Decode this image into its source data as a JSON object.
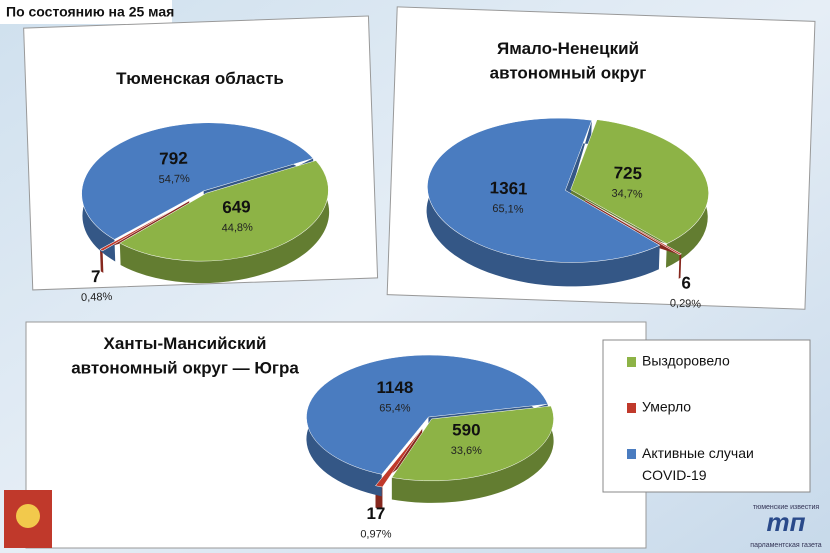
{
  "header": "По состоянию на 25 мая",
  "logo": {
    "top": "тюменские известия",
    "mark": "тп",
    "bottom": "парламентская газета"
  },
  "legend": {
    "names": [
      "Выздоровело",
      "Умерло",
      "Активные случаи COVID-19"
    ],
    "colors": [
      "#8db346",
      "#c0392b",
      "#4a7cc0"
    ]
  },
  "chart_data": [
    {
      "type": "pie",
      "title": "Тюменская область",
      "categories": [
        "Выздоровело",
        "Умерло",
        "Активные случаи COVID-19"
      ],
      "values": [
        649,
        7,
        792
      ],
      "shares": [
        {
          "value": 44.8,
          "label": "44,8%"
        },
        {
          "value": 0.48,
          "label": "0,48%"
        },
        {
          "value": 54.7,
          "label": "54,7%"
        }
      ],
      "colors": [
        "#8db346",
        "#c0392b",
        "#4a7cc0"
      ]
    },
    {
      "type": "pie",
      "title": "Ямало-Ненецкий автономный округ",
      "categories": [
        "Выздоровело",
        "Умерло",
        "Активные случаи COVID-19"
      ],
      "values": [
        725,
        6,
        1361
      ],
      "shares": [
        {
          "value": 34.7,
          "label": "34,7%"
        },
        {
          "value": 0.29,
          "label": "0,29%"
        },
        {
          "value": 65.1,
          "label": "65,1%"
        }
      ],
      "colors": [
        "#8db346",
        "#c0392b",
        "#4a7cc0"
      ]
    },
    {
      "type": "pie",
      "title": "Ханты-Мансийский автономный округ — Югра",
      "categories": [
        "Выздоровело",
        "Умерло",
        "Активные случаи COVID-19"
      ],
      "values": [
        590,
        17,
        1148
      ],
      "shares": [
        {
          "value": 33.6,
          "label": "33,6%"
        },
        {
          "value": 0.97,
          "label": "0,97%"
        },
        {
          "value": 65.4,
          "label": "65,4%"
        }
      ],
      "colors": [
        "#8db346",
        "#c0392b",
        "#4a7cc0"
      ]
    }
  ]
}
